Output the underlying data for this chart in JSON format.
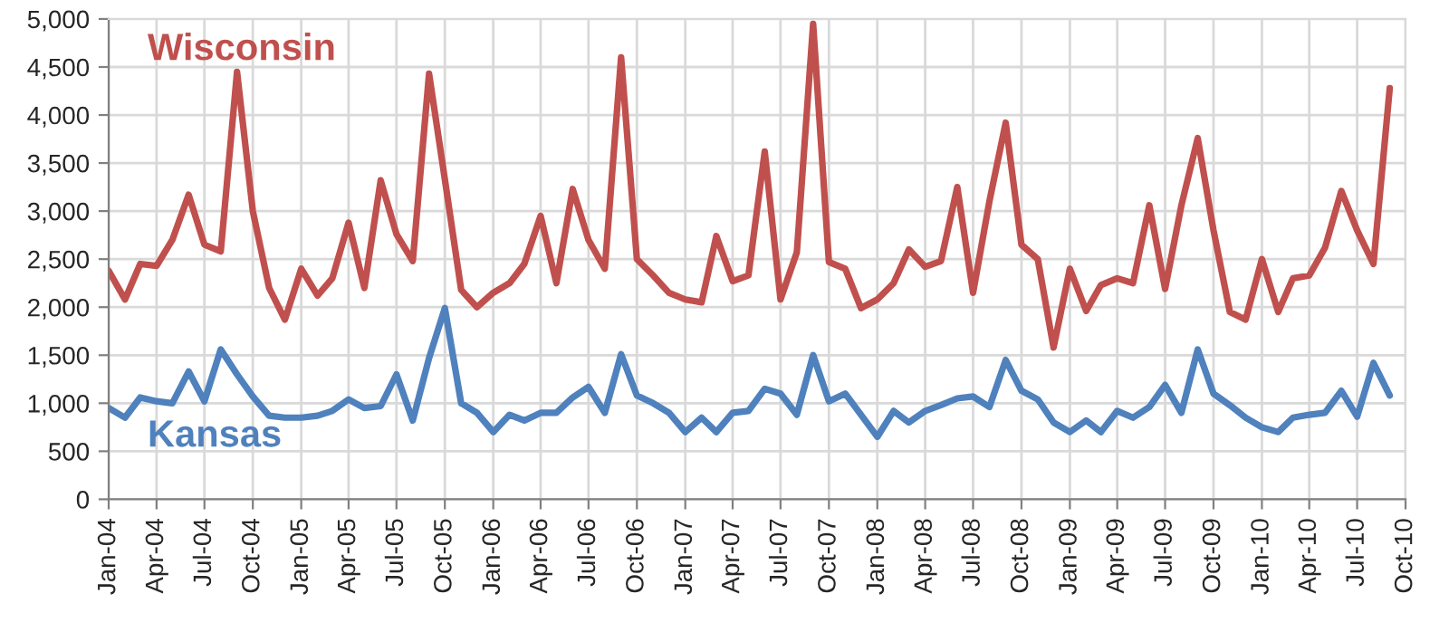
{
  "chart_data": {
    "type": "line",
    "x": [
      "2004-01",
      "2004-02",
      "2004-03",
      "2004-04",
      "2004-05",
      "2004-06",
      "2004-07",
      "2004-08",
      "2004-09",
      "2004-10",
      "2004-11",
      "2004-12",
      "2005-01",
      "2005-02",
      "2005-03",
      "2005-04",
      "2005-05",
      "2005-06",
      "2005-07",
      "2005-08",
      "2005-09",
      "2005-10",
      "2005-11",
      "2005-12",
      "2006-01",
      "2006-02",
      "2006-03",
      "2006-04",
      "2006-05",
      "2006-06",
      "2006-07",
      "2006-08",
      "2006-09",
      "2006-10",
      "2006-11",
      "2006-12",
      "2007-01",
      "2007-02",
      "2007-03",
      "2007-04",
      "2007-05",
      "2007-06",
      "2007-07",
      "2007-08",
      "2007-09",
      "2007-10",
      "2007-11",
      "2007-12",
      "2008-01",
      "2008-02",
      "2008-03",
      "2008-04",
      "2008-05",
      "2008-06",
      "2008-07",
      "2008-08",
      "2008-09",
      "2008-10",
      "2008-11",
      "2008-12",
      "2009-01",
      "2009-02",
      "2009-03",
      "2009-04",
      "2009-05",
      "2009-06",
      "2009-07",
      "2009-08",
      "2009-09",
      "2009-10",
      "2009-11",
      "2009-12",
      "2010-01",
      "2010-02",
      "2010-03",
      "2010-04",
      "2010-05",
      "2010-06",
      "2010-07",
      "2010-08",
      "2010-09"
    ],
    "series": [
      {
        "name": "Wisconsin",
        "color": "#c0504d",
        "values": [
          2380,
          2080,
          2450,
          2430,
          2700,
          3170,
          2650,
          2580,
          4450,
          3000,
          2200,
          1870,
          2400,
          2120,
          2300,
          2880,
          2200,
          3320,
          2760,
          2480,
          4430,
          3330,
          2180,
          2000,
          2150,
          2250,
          2450,
          2950,
          2250,
          3230,
          2700,
          2400,
          4600,
          2500,
          2330,
          2150,
          2080,
          2050,
          2740,
          2270,
          2330,
          3620,
          2080,
          2570,
          4950,
          2470,
          2400,
          1990,
          2080,
          2250,
          2600,
          2420,
          2480,
          3250,
          2150,
          3100,
          3920,
          2650,
          2500,
          1580,
          2400,
          1960,
          2230,
          2300,
          2250,
          3060,
          2190,
          3060,
          3760,
          2800,
          1950,
          1870,
          2500,
          1950,
          2300,
          2330,
          2620,
          3210,
          2800,
          2450,
          4280
        ]
      },
      {
        "name": "Kansas",
        "color": "#4f81bd",
        "values": [
          950,
          850,
          1060,
          1020,
          1000,
          1330,
          1020,
          1560,
          1300,
          1070,
          870,
          850,
          850,
          870,
          920,
          1040,
          950,
          970,
          1300,
          820,
          1470,
          1990,
          1000,
          900,
          700,
          880,
          820,
          900,
          900,
          1060,
          1170,
          900,
          1510,
          1080,
          1000,
          900,
          700,
          850,
          700,
          900,
          920,
          1150,
          1100,
          880,
          1500,
          1020,
          1100,
          880,
          650,
          920,
          800,
          920,
          980,
          1050,
          1070,
          960,
          1450,
          1130,
          1040,
          800,
          700,
          820,
          700,
          920,
          850,
          960,
          1190,
          900,
          1560,
          1100,
          980,
          850,
          750,
          700,
          850,
          880,
          900,
          1130,
          860,
          1420,
          1080
        ]
      }
    ],
    "xlim": [
      "2004-01",
      "2010-10"
    ],
    "xticks": [
      {
        "value": "2004-01",
        "label": "Jan-04"
      },
      {
        "value": "2004-04",
        "label": "Apr-04"
      },
      {
        "value": "2004-07",
        "label": "Jul-04"
      },
      {
        "value": "2004-10",
        "label": "Oct-04"
      },
      {
        "value": "2005-01",
        "label": "Jan-05"
      },
      {
        "value": "2005-04",
        "label": "Apr-05"
      },
      {
        "value": "2005-07",
        "label": "Jul-05"
      },
      {
        "value": "2005-10",
        "label": "Oct-05"
      },
      {
        "value": "2006-01",
        "label": "Jan-06"
      },
      {
        "value": "2006-04",
        "label": "Apr-06"
      },
      {
        "value": "2006-07",
        "label": "Jul-06"
      },
      {
        "value": "2006-10",
        "label": "Oct-06"
      },
      {
        "value": "2007-01",
        "label": "Jan-07"
      },
      {
        "value": "2007-04",
        "label": "Apr-07"
      },
      {
        "value": "2007-07",
        "label": "Jul-07"
      },
      {
        "value": "2007-10",
        "label": "Oct-07"
      },
      {
        "value": "2008-01",
        "label": "Jan-08"
      },
      {
        "value": "2008-04",
        "label": "Apr-08"
      },
      {
        "value": "2008-07",
        "label": "Jul-08"
      },
      {
        "value": "2008-10",
        "label": "Oct-08"
      },
      {
        "value": "2009-01",
        "label": "Jan-09"
      },
      {
        "value": "2009-04",
        "label": "Apr-09"
      },
      {
        "value": "2009-07",
        "label": "Jul-09"
      },
      {
        "value": "2009-10",
        "label": "Oct-09"
      },
      {
        "value": "2010-01",
        "label": "Jan-10"
      },
      {
        "value": "2010-04",
        "label": "Apr-10"
      },
      {
        "value": "2010-07",
        "label": "Jul-10"
      },
      {
        "value": "2010-10",
        "label": "Oct-10"
      }
    ],
    "ylim": [
      0,
      5000
    ],
    "yticks": [
      {
        "value": 0,
        "label": "0"
      },
      {
        "value": 500,
        "label": "500"
      },
      {
        "value": 1000,
        "label": "1,000"
      },
      {
        "value": 1500,
        "label": "1,500"
      },
      {
        "value": 2000,
        "label": "2,000"
      },
      {
        "value": 2500,
        "label": "2,500"
      },
      {
        "value": 3000,
        "label": "3,000"
      },
      {
        "value": 3500,
        "label": "3,500"
      },
      {
        "value": 4000,
        "label": "4,000"
      },
      {
        "value": 4500,
        "label": "4,500"
      },
      {
        "value": 5000,
        "label": "5,000"
      }
    ],
    "grid": true,
    "legend": false,
    "marker": "none",
    "line_style": "solid"
  }
}
